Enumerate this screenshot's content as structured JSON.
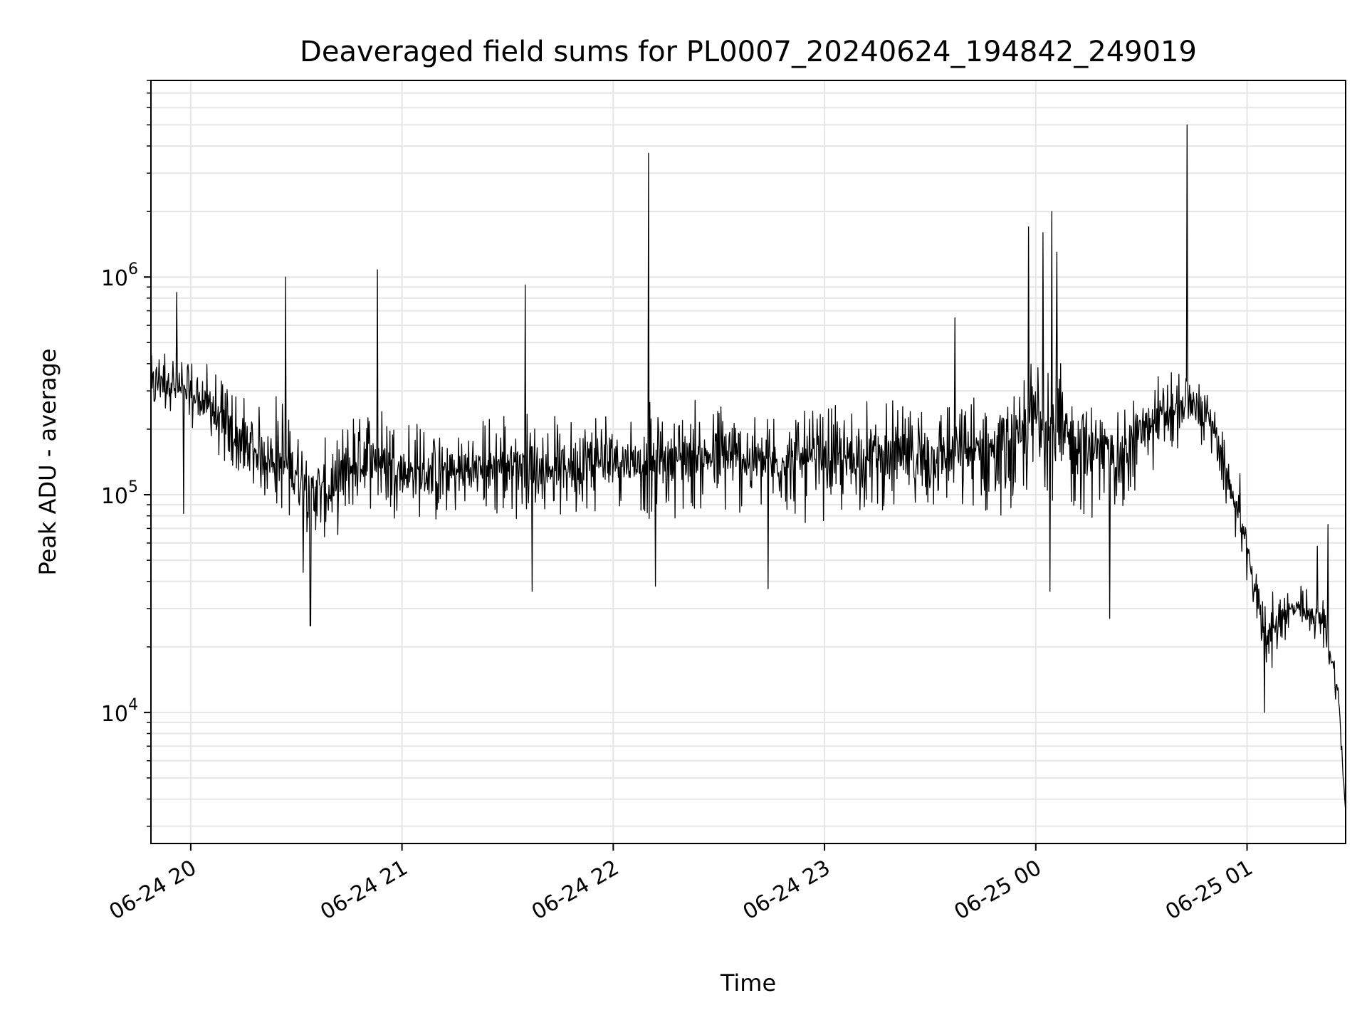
{
  "chart_data": {
    "type": "line",
    "title": "Deaveraged field sums for PL0007_20240624_194842_249019",
    "xlabel": "Time",
    "ylabel": "Peak ADU - average",
    "y_scale": "log",
    "ylim": [
      2500,
      8000000
    ],
    "xlim": [
      "2024-06-24 19:48:42",
      "2024-06-25 01:28:00"
    ],
    "grid": true,
    "line_color": "#000000",
    "grid_color": "#e6e6e6",
    "x_ticks": [
      {
        "value": "2024-06-24 20:00",
        "label": "06-24 20"
      },
      {
        "value": "2024-06-24 21:00",
        "label": "06-24 21"
      },
      {
        "value": "2024-06-24 22:00",
        "label": "06-24 22"
      },
      {
        "value": "2024-06-24 23:00",
        "label": "06-24 23"
      },
      {
        "value": "2024-06-25 00:00",
        "label": "06-25 00"
      },
      {
        "value": "2024-06-25 01:00",
        "label": "06-25 01"
      }
    ],
    "y_ticks": [
      {
        "value": 10000,
        "base": "10",
        "exp": "4"
      },
      {
        "value": 100000,
        "base": "10",
        "exp": "5"
      },
      {
        "value": 1000000,
        "base": "10",
        "exp": "6"
      }
    ],
    "series": [
      {
        "x": [
          "2024-06-24 19:48:42",
          "2024-06-24 19:52",
          "2024-06-24 19:56",
          "2024-06-24 20:00",
          "2024-06-24 20:05",
          "2024-06-24 20:10",
          "2024-06-24 20:15",
          "2024-06-24 20:20",
          "2024-06-24 20:25",
          "2024-06-24 20:30",
          "2024-06-24 20:35",
          "2024-06-24 20:40",
          "2024-06-24 20:45",
          "2024-06-24 20:50",
          "2024-06-24 20:55",
          "2024-06-24 21:00",
          "2024-06-24 21:10",
          "2024-06-24 21:20",
          "2024-06-24 21:30",
          "2024-06-24 21:40",
          "2024-06-24 21:50",
          "2024-06-24 22:00",
          "2024-06-24 22:10",
          "2024-06-24 22:20",
          "2024-06-24 22:30",
          "2024-06-24 22:45",
          "2024-06-24 23:00",
          "2024-06-24 23:15",
          "2024-06-24 23:30",
          "2024-06-24 23:45",
          "2024-06-24 23:55",
          "2024-06-25 00:00",
          "2024-06-25 00:05",
          "2024-06-25 00:10",
          "2024-06-25 00:15",
          "2024-06-25 00:20",
          "2024-06-25 00:25",
          "2024-06-25 00:30",
          "2024-06-25 00:35",
          "2024-06-25 00:40",
          "2024-06-25 00:45",
          "2024-06-25 00:48",
          "2024-06-25 00:52",
          "2024-06-25 00:55",
          "2024-06-25 00:58",
          "2024-06-25 01:02",
          "2024-06-25 01:06",
          "2024-06-25 01:10",
          "2024-06-25 01:14",
          "2024-06-25 01:18",
          "2024-06-25 01:22",
          "2024-06-25 01:26",
          "2024-06-25 01:28"
        ],
        "values": [
          320000,
          350000,
          300000,
          280000,
          260000,
          200000,
          160000,
          150000,
          140000,
          130000,
          110000,
          100000,
          130000,
          150000,
          140000,
          130000,
          120000,
          130000,
          140000,
          130000,
          140000,
          150000,
          140000,
          150000,
          150000,
          140000,
          145000,
          150000,
          150000,
          160000,
          170000,
          230000,
          190000,
          180000,
          170000,
          160000,
          150000,
          200000,
          220000,
          240000,
          260000,
          250000,
          180000,
          110000,
          80000,
          40000,
          22000,
          28000,
          30000,
          28000,
          26000,
          12000,
          3500
        ],
        "band_low": [
          150000,
          200000,
          180000,
          160000,
          140000,
          100000,
          80000,
          70000,
          60000,
          50000,
          45000,
          50000,
          60000,
          60000,
          60000,
          55000,
          55000,
          55000,
          55000,
          55000,
          55000,
          55000,
          55000,
          55000,
          55000,
          55000,
          55000,
          55000,
          55000,
          55000,
          50000,
          60000,
          50000,
          50000,
          50000,
          50000,
          45000,
          80000,
          100000,
          120000,
          130000,
          120000,
          90000,
          55000,
          40000,
          18000,
          11000,
          18000,
          19000,
          18000,
          17000,
          8000,
          3500
        ],
        "band_high": [
          500000,
          600000,
          650000,
          600000,
          550000,
          500000,
          450000,
          400000,
          500000,
          300000,
          200000,
          250000,
          350000,
          400000,
          350000,
          350000,
          320000,
          330000,
          330000,
          300000,
          330000,
          350000,
          340000,
          370000,
          400000,
          350000,
          380000,
          380000,
          400000,
          400000,
          450000,
          1200000,
          900000,
          500000,
          350000,
          330000,
          350000,
          420000,
          500000,
          550000,
          450000,
          380000,
          250000,
          150000,
          110000,
          55000,
          40000,
          45000,
          48000,
          45000,
          40000,
          17000,
          3500
        ]
      }
    ],
    "spikes": [
      {
        "x": "2024-06-24 19:56",
        "value": 850000
      },
      {
        "x": "2024-06-24 19:58",
        "value": 82000
      },
      {
        "x": "2024-06-24 20:27",
        "value": 1000000
      },
      {
        "x": "2024-06-24 20:32",
        "value": 44000
      },
      {
        "x": "2024-06-24 20:34",
        "value": 25000
      },
      {
        "x": "2024-06-24 20:53",
        "value": 1080000
      },
      {
        "x": "2024-06-24 21:35",
        "value": 920000
      },
      {
        "x": "2024-06-24 21:37",
        "value": 36000
      },
      {
        "x": "2024-06-24 22:10",
        "value": 3700000
      },
      {
        "x": "2024-06-24 22:12",
        "value": 38000
      },
      {
        "x": "2024-06-24 22:44",
        "value": 37000
      },
      {
        "x": "2024-06-24 23:37",
        "value": 650000
      },
      {
        "x": "2024-06-24 23:58",
        "value": 1700000
      },
      {
        "x": "2024-06-25 00:02",
        "value": 1600000
      },
      {
        "x": "2024-06-25 00:04",
        "value": 36000
      },
      {
        "x": "2024-06-25 00:04:30",
        "value": 2000000
      },
      {
        "x": "2024-06-25 00:06",
        "value": 1300000
      },
      {
        "x": "2024-06-25 00:21",
        "value": 27000
      },
      {
        "x": "2024-06-25 00:43",
        "value": 5000000
      },
      {
        "x": "2024-06-25 00:58",
        "value": 125000
      },
      {
        "x": "2024-06-25 01:05",
        "value": 10000
      },
      {
        "x": "2024-06-25 01:20",
        "value": 58000
      },
      {
        "x": "2024-06-25 01:23",
        "value": 73000
      }
    ]
  }
}
